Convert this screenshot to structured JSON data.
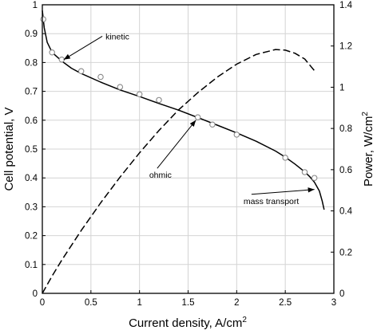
{
  "chart_data": {
    "type": "line",
    "title": "",
    "xlabel": "Current density, A/cm",
    "xlabel_sup": "2",
    "ylabel": "Cell potential, V",
    "ylabel_right": "Power, W/cm",
    "ylabel_right_sup": "2",
    "xlim": [
      0,
      3
    ],
    "ylim": [
      0,
      1
    ],
    "ylim_right": [
      0,
      1.4
    ],
    "x_ticks": [
      "0",
      "0.5",
      "1",
      "1.5",
      "2",
      "2.5",
      "3"
    ],
    "y_ticks": [
      "0",
      "0.1",
      "0.2",
      "0.3",
      "0.4",
      "0.5",
      "0.6",
      "0.7",
      "0.8",
      "0.9",
      "1"
    ],
    "y_ticks_right": [
      "0",
      "0.2",
      "0.4",
      "0.6",
      "0.8",
      "1",
      "1.2",
      "1.4"
    ],
    "grid": true,
    "legend": "none",
    "series": [
      {
        "style": "solid",
        "axis": "left",
        "x": [
          0.0,
          0.02,
          0.05,
          0.1,
          0.15,
          0.2,
          0.3,
          0.4,
          0.6,
          0.8,
          1.0,
          1.2,
          1.4,
          1.6,
          1.8,
          2.0,
          2.2,
          2.4,
          2.5,
          2.6,
          2.7,
          2.75,
          2.8,
          2.85,
          2.88,
          2.9
        ],
        "y": [
          0.98,
          0.92,
          0.87,
          0.835,
          0.82,
          0.805,
          0.78,
          0.762,
          0.732,
          0.705,
          0.682,
          0.658,
          0.635,
          0.609,
          0.583,
          0.556,
          0.527,
          0.493,
          0.472,
          0.448,
          0.421,
          0.405,
          0.385,
          0.355,
          0.32,
          0.29
        ]
      },
      {
        "style": "markers",
        "axis": "left",
        "x": [
          0.01,
          0.1,
          0.2,
          0.4,
          0.6,
          0.8,
          1.0,
          1.2,
          1.6,
          1.75,
          2.0,
          2.5,
          2.7,
          2.8
        ],
        "y": [
          0.95,
          0.835,
          0.81,
          0.77,
          0.75,
          0.715,
          0.69,
          0.67,
          0.61,
          0.585,
          0.55,
          0.47,
          0.42,
          0.4
        ]
      },
      {
        "style": "dashed",
        "axis": "right",
        "x": [
          0.0,
          0.1,
          0.2,
          0.4,
          0.6,
          0.8,
          1.0,
          1.2,
          1.4,
          1.6,
          1.8,
          2.0,
          2.2,
          2.4,
          2.5,
          2.6,
          2.7,
          2.8
        ],
        "y": [
          0.0,
          0.084,
          0.161,
          0.305,
          0.439,
          0.564,
          0.682,
          0.79,
          0.889,
          0.974,
          1.049,
          1.112,
          1.159,
          1.183,
          1.18,
          1.165,
          1.137,
          1.08
        ]
      }
    ],
    "annotations": [
      {
        "text": "kinetic",
        "x": 0.65,
        "y": 0.88,
        "arrow_to": [
          0.22,
          0.81
        ]
      },
      {
        "text": "ohmic",
        "x": 1.1,
        "y": 0.4,
        "arrow_to": [
          1.58,
          0.6
        ]
      },
      {
        "text": "mass transport",
        "x": 2.07,
        "y": 0.31,
        "arrow_to": [
          2.8,
          0.36
        ]
      }
    ]
  }
}
